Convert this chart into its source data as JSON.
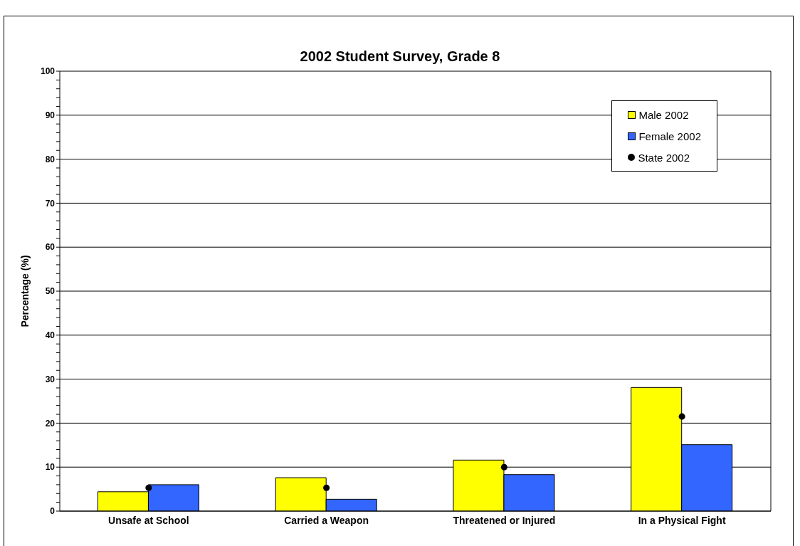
{
  "chart_data": {
    "type": "bar",
    "title": "2002 Student Survey, Grade 8",
    "ylabel": "Percentage (%)",
    "categories": [
      "Unsafe at School",
      "Carried a Weapon",
      "Threatened or Injured",
      "In a Physical Fight"
    ],
    "series": [
      {
        "name": "Male 2002",
        "color": "#ffff00",
        "values": [
          4.4,
          7.6,
          11.6,
          28.1
        ]
      },
      {
        "name": "Female 2002",
        "color": "#3366ff",
        "values": [
          6.0,
          2.7,
          8.3,
          15.1
        ]
      },
      {
        "name": "State 2002",
        "type": "scatter",
        "marker": "circle",
        "color": "#000000",
        "x": [
          "Unsafe at School",
          "Carried a Weapon",
          "Threatened or Injured",
          "In a Physical Fight"
        ],
        "values": [
          5.3,
          5.3,
          10.0,
          21.5
        ]
      }
    ],
    "ylim": [
      0,
      100
    ],
    "yticks": [
      0,
      {
        "value": 2,
        "label": null
      },
      {
        "value": 4,
        "label": null
      },
      {
        "value": 6,
        "label": null
      },
      {
        "value": 8,
        "label": null
      },
      10,
      {
        "value": 12,
        "label": null
      },
      {
        "value": 14,
        "label": null
      },
      {
        "value": 16,
        "label": null
      },
      {
        "value": 18,
        "label": null
      },
      20,
      {
        "value": 22,
        "label": null
      },
      {
        "value": 24,
        "label": null
      },
      {
        "value": 26,
        "label": null
      },
      {
        "value": 28,
        "label": null
      },
      30,
      {
        "value": 32,
        "label": null
      },
      {
        "value": 34,
        "label": null
      },
      {
        "value": 36,
        "label": null
      },
      {
        "value": 38,
        "label": null
      },
      40,
      {
        "value": 42,
        "label": null
      },
      {
        "value": 44,
        "label": null
      },
      {
        "value": 46,
        "label": null
      },
      {
        "value": 48,
        "label": null
      },
      50,
      {
        "value": 52,
        "label": null
      },
      {
        "value": 54,
        "label": null
      },
      {
        "value": 56,
        "label": null
      },
      {
        "value": 58,
        "label": null
      },
      60,
      {
        "value": 62,
        "label": null
      },
      {
        "value": 64,
        "label": null
      },
      {
        "value": 66,
        "label": null
      },
      {
        "value": 68,
        "label": null
      },
      70,
      {
        "value": 72,
        "label": null
      },
      {
        "value": 74,
        "label": null
      },
      {
        "value": 76,
        "label": null
      },
      {
        "value": 78,
        "label": null
      },
      80,
      {
        "value": 82,
        "label": null
      },
      {
        "value": 84,
        "label": null
      },
      {
        "value": 86,
        "label": null
      },
      {
        "value": 88,
        "label": null
      },
      90,
      {
        "value": 92,
        "label": null
      },
      {
        "value": 94,
        "label": null
      },
      {
        "value": 96,
        "label": null
      },
      {
        "value": 98,
        "label": null
      },
      100
    ],
    "grid": "y",
    "legend": "top right"
  }
}
